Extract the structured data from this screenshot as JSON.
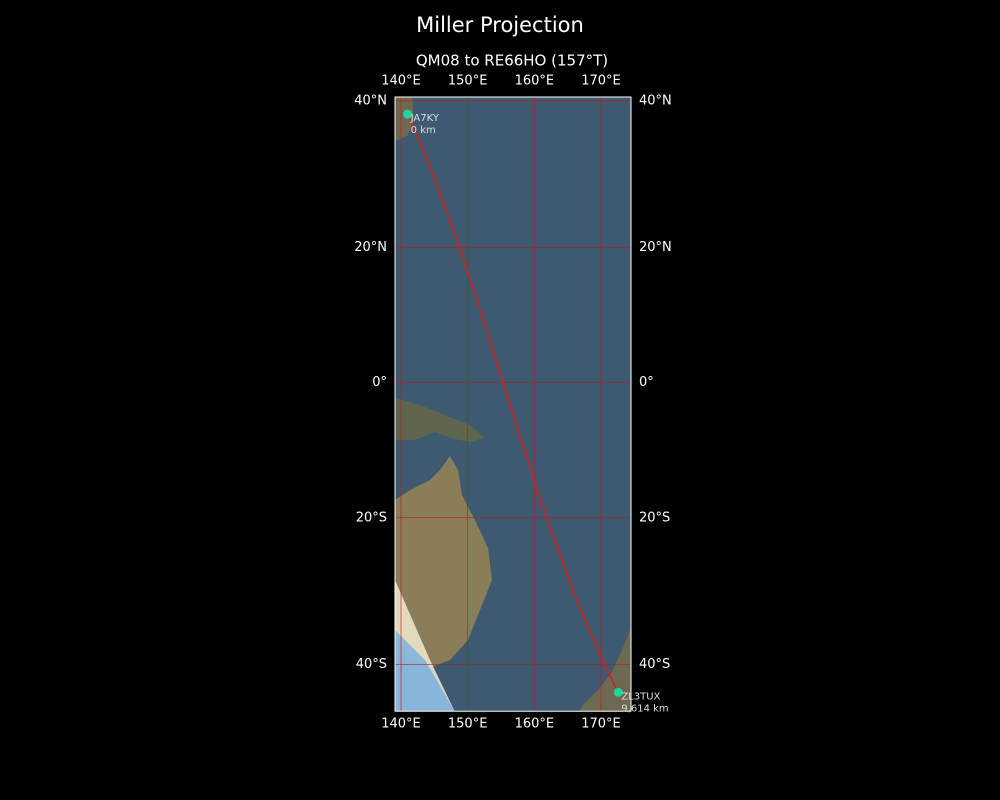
{
  "title": "Miller Projection",
  "subtitle": "QM08 to RE66HO (157°T)",
  "map": {
    "lonlim": [
      139.1,
      174.5
    ],
    "latlim": [
      -45.8,
      40.5
    ],
    "lonticks": [
      {
        "value": 140,
        "label": "140°E"
      },
      {
        "value": 150,
        "label": "150°E"
      },
      {
        "value": 160,
        "label": "160°E"
      },
      {
        "value": 170,
        "label": "170°E"
      }
    ],
    "latticks": [
      {
        "value": 40,
        "label": "40°N"
      },
      {
        "value": 20,
        "label": "20°N"
      },
      {
        "value": 0,
        "label": "0°"
      },
      {
        "value": -20,
        "label": "20°S"
      },
      {
        "value": -40,
        "label": "40°S"
      }
    ],
    "grid": true,
    "path_color": "#d61f1f",
    "station_color": "#1ed6a0",
    "stations": [
      {
        "name": "JA7KY",
        "distance": "0 km",
        "lon": 141.0,
        "lat": 38.3
      },
      {
        "name": "ZL3TUX",
        "distance": "9,614 km",
        "lon": 172.6,
        "lat": -43.5
      }
    ]
  }
}
